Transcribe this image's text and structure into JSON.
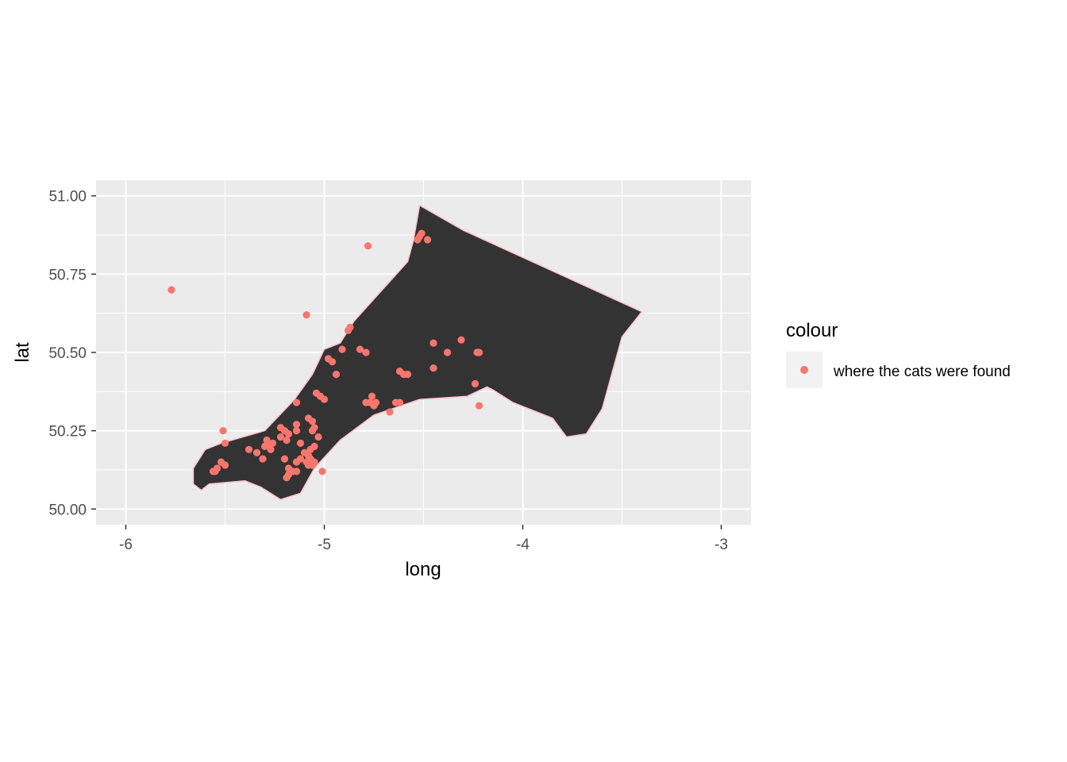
{
  "chart_data": {
    "type": "scatter",
    "xlabel": "long",
    "ylabel": "lat",
    "xlim": [
      -6.15,
      -2.85
    ],
    "ylim": [
      49.95,
      51.05
    ],
    "x_ticks": [
      -6,
      -5,
      -4,
      -3
    ],
    "x_tick_labels": [
      "-6",
      "-5",
      "-4",
      "-3"
    ],
    "y_ticks": [
      50.0,
      50.25,
      50.5,
      50.75,
      51.0
    ],
    "y_tick_labels": [
      "50.00",
      "50.25",
      "50.50",
      "50.75",
      "51.00"
    ],
    "grid": true,
    "panel_color": "#ebebeb",
    "legend": {
      "title": "colour",
      "position": "right",
      "entries": [
        {
          "label": "where the cats were found",
          "color": "#f8766d"
        }
      ]
    },
    "polygon": {
      "fill": "#333333",
      "stroke": "#ffc0cb",
      "points": [
        [
          -4.52,
          50.97
        ],
        [
          -4.3,
          50.89
        ],
        [
          -3.4,
          50.63
        ],
        [
          -3.5,
          50.55
        ],
        [
          -3.6,
          50.32
        ],
        [
          -3.68,
          50.24
        ],
        [
          -3.78,
          50.23
        ],
        [
          -3.85,
          50.29
        ],
        [
          -4.05,
          50.34
        ],
        [
          -4.15,
          50.38
        ],
        [
          -4.18,
          50.39
        ],
        [
          -4.28,
          50.36
        ],
        [
          -4.52,
          50.35
        ],
        [
          -4.75,
          50.3
        ],
        [
          -4.92,
          50.22
        ],
        [
          -5.05,
          50.13
        ],
        [
          -5.12,
          50.05
        ],
        [
          -5.22,
          50.03
        ],
        [
          -5.32,
          50.07
        ],
        [
          -5.4,
          50.09
        ],
        [
          -5.58,
          50.08
        ],
        [
          -5.62,
          50.06
        ],
        [
          -5.66,
          50.08
        ],
        [
          -5.66,
          50.13
        ],
        [
          -5.6,
          50.19
        ],
        [
          -5.52,
          50.21
        ],
        [
          -5.3,
          50.25
        ],
        [
          -5.15,
          50.35
        ],
        [
          -5.06,
          50.43
        ],
        [
          -5.0,
          50.51
        ],
        [
          -4.92,
          50.53
        ],
        [
          -4.85,
          50.6
        ],
        [
          -4.58,
          50.79
        ],
        [
          -4.55,
          50.86
        ]
      ]
    },
    "series": [
      {
        "name": "where the cats were found",
        "color": "#f8766d",
        "points": [
          [
            -5.77,
            50.7
          ],
          [
            -4.78,
            50.84
          ],
          [
            -5.09,
            50.62
          ],
          [
            -4.52,
            50.87
          ],
          [
            -4.51,
            50.88
          ],
          [
            -4.53,
            50.86
          ],
          [
            -4.48,
            50.86
          ],
          [
            -4.87,
            50.58
          ],
          [
            -4.88,
            50.57
          ],
          [
            -4.45,
            50.53
          ],
          [
            -4.38,
            50.5
          ],
          [
            -4.31,
            50.54
          ],
          [
            -4.22,
            50.5
          ],
          [
            -4.23,
            50.5
          ],
          [
            -4.62,
            50.44
          ],
          [
            -4.6,
            50.43
          ],
          [
            -4.58,
            50.43
          ],
          [
            -4.45,
            50.45
          ],
          [
            -4.24,
            50.4
          ],
          [
            -4.22,
            50.33
          ],
          [
            -4.82,
            50.51
          ],
          [
            -4.79,
            50.5
          ],
          [
            -4.91,
            50.51
          ],
          [
            -4.98,
            50.48
          ],
          [
            -4.96,
            50.47
          ],
          [
            -4.94,
            50.43
          ],
          [
            -4.76,
            50.36
          ],
          [
            -4.77,
            50.34
          ],
          [
            -4.79,
            50.34
          ],
          [
            -4.74,
            50.34
          ],
          [
            -4.75,
            50.33
          ],
          [
            -4.64,
            50.34
          ],
          [
            -4.62,
            50.34
          ],
          [
            -4.67,
            50.31
          ],
          [
            -5.04,
            50.37
          ],
          [
            -5.02,
            50.36
          ],
          [
            -5.0,
            50.35
          ],
          [
            -5.14,
            50.34
          ],
          [
            -5.08,
            50.29
          ],
          [
            -5.06,
            50.28
          ],
          [
            -5.05,
            50.26
          ],
          [
            -5.06,
            50.25
          ],
          [
            -5.03,
            50.23
          ],
          [
            -5.14,
            50.27
          ],
          [
            -5.14,
            50.25
          ],
          [
            -5.22,
            50.26
          ],
          [
            -5.2,
            50.25
          ],
          [
            -5.18,
            50.24
          ],
          [
            -5.22,
            50.23
          ],
          [
            -5.19,
            50.22
          ],
          [
            -5.29,
            50.22
          ],
          [
            -5.28,
            50.21
          ],
          [
            -5.26,
            50.21
          ],
          [
            -5.3,
            50.2
          ],
          [
            -5.27,
            50.19
          ],
          [
            -5.12,
            50.21
          ],
          [
            -5.07,
            50.19
          ],
          [
            -5.05,
            50.2
          ],
          [
            -5.34,
            50.18
          ],
          [
            -5.38,
            50.19
          ],
          [
            -5.31,
            50.16
          ],
          [
            -5.1,
            50.18
          ],
          [
            -5.08,
            50.17
          ],
          [
            -5.07,
            50.16
          ],
          [
            -5.05,
            50.15
          ],
          [
            -5.09,
            50.15
          ],
          [
            -5.08,
            50.14
          ],
          [
            -5.06,
            50.14
          ],
          [
            -5.12,
            50.16
          ],
          [
            -5.14,
            50.15
          ],
          [
            -5.2,
            50.16
          ],
          [
            -5.18,
            50.13
          ],
          [
            -5.16,
            50.12
          ],
          [
            -5.14,
            50.12
          ],
          [
            -5.18,
            50.11
          ],
          [
            -5.19,
            50.1
          ],
          [
            -5.01,
            50.12
          ],
          [
            -5.5,
            50.21
          ],
          [
            -5.51,
            50.25
          ],
          [
            -5.52,
            50.15
          ],
          [
            -5.5,
            50.14
          ],
          [
            -5.54,
            50.13
          ],
          [
            -5.55,
            50.12
          ],
          [
            -5.56,
            50.12
          ]
        ]
      }
    ]
  }
}
